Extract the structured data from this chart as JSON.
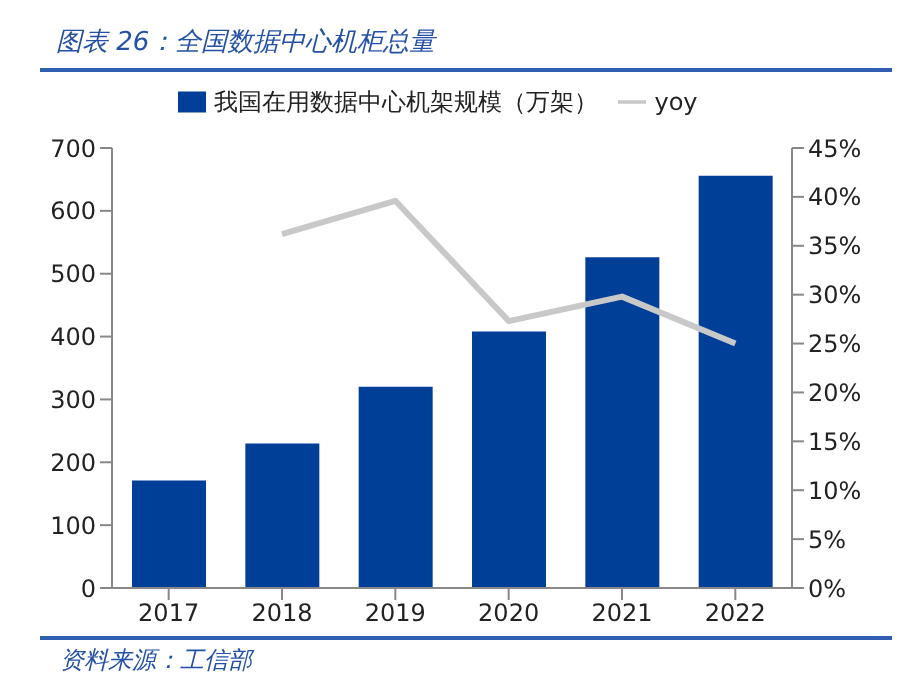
{
  "chart_data": {
    "type": "bar",
    "title": "图表 26：全国数据中心机柜总量",
    "categories": [
      "2017",
      "2018",
      "2019",
      "2020",
      "2021",
      "2022"
    ],
    "series": [
      {
        "name": "我国在用数据中心机架规模（万架）",
        "color": "#003f98",
        "values": [
          171,
          230,
          320,
          408,
          526,
          656
        ]
      },
      {
        "name": "yoy",
        "type": "line",
        "axis": "y2",
        "color": "#c8c8c8",
        "marker": "none",
        "values": [
          null,
          36.2,
          39.6,
          27.3,
          29.8,
          25.0
        ]
      }
    ],
    "ylim": [
      0,
      700
    ],
    "yticks": [
      0,
      100,
      200,
      300,
      400,
      500,
      600,
      700
    ],
    "y2lim": [
      0,
      45
    ],
    "y2ticks": [
      {
        "value": 0,
        "label": "0%"
      },
      {
        "value": 5,
        "label": "5%"
      },
      {
        "value": 10,
        "label": "10%"
      },
      {
        "value": 15,
        "label": "15%"
      },
      {
        "value": 20,
        "label": "20%"
      },
      {
        "value": 25,
        "label": "25%"
      },
      {
        "value": 30,
        "label": "30%"
      },
      {
        "value": 35,
        "label": "35%"
      },
      {
        "value": 40,
        "label": "40%"
      },
      {
        "value": 45,
        "label": "45%"
      }
    ],
    "grid": false,
    "legend": "top",
    "annotations": [
      "资料来源：工信部"
    ]
  }
}
